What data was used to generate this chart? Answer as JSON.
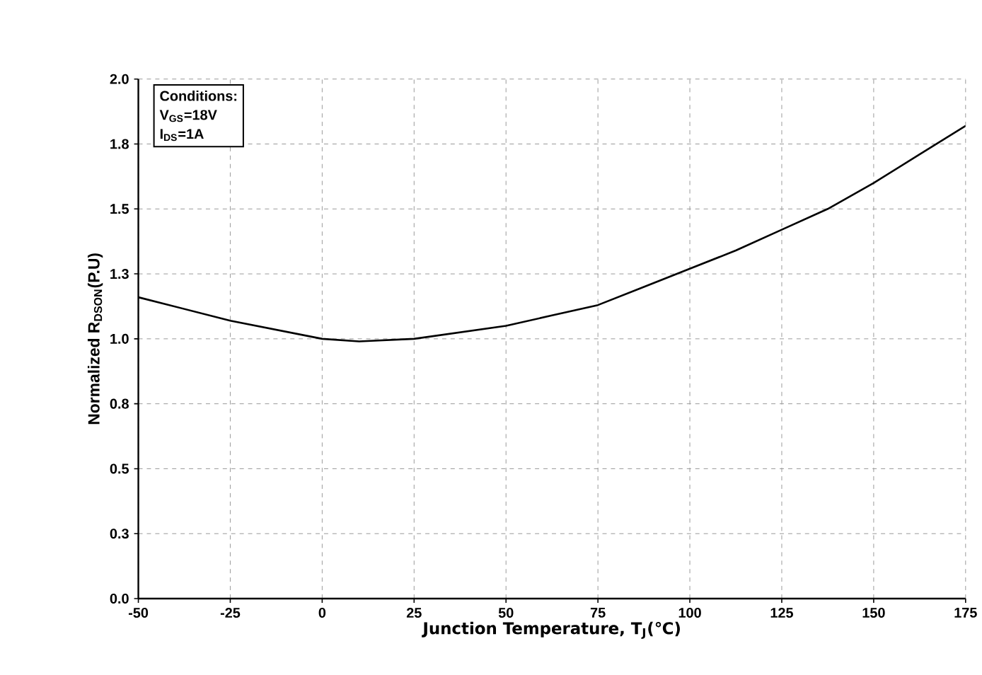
{
  "chart_data": {
    "type": "line",
    "xlabel": "Junction Temperature, T$_{J}$(℃)",
    "ylabel": "Normalized R$_{DSON}$(P.U)",
    "annotations": [
      "Conditions:",
      "V$_{GS}$=18V",
      "I$_{DS}$=1A"
    ],
    "x": [
      -50,
      -25,
      0,
      10,
      25,
      50,
      62.5,
      75,
      87.5,
      100,
      112.5,
      125,
      137.5,
      150,
      162.5,
      175
    ],
    "series": [
      {
        "color": "#000000",
        "values": [
          1.16,
          1.07,
          1.0,
          0.99,
          1.0,
          1.05,
          1.09,
          1.13,
          1.2,
          1.27,
          1.34,
          1.42,
          1.5,
          1.6,
          1.71,
          1.82
        ]
      }
    ],
    "xlim": [
      -50,
      175
    ],
    "xticks": [
      -50,
      -25,
      0,
      25,
      50,
      75,
      100,
      125,
      150,
      175
    ],
    "ylim": [
      0,
      2
    ],
    "yticks": [
      {
        "value": 0,
        "label": "0.0"
      },
      {
        "value": 0.25,
        "label": "0.3"
      },
      {
        "value": 0.5,
        "label": "0.5"
      },
      {
        "value": 0.75,
        "label": "0.8"
      },
      {
        "value": 1.0,
        "label": "1.0"
      },
      {
        "value": 1.25,
        "label": "1.3"
      },
      {
        "value": 1.5,
        "label": "1.5"
      },
      {
        "value": 1.75,
        "label": "1.8"
      },
      {
        "value": 2.0,
        "label": "2.0"
      }
    ],
    "grid": true
  }
}
